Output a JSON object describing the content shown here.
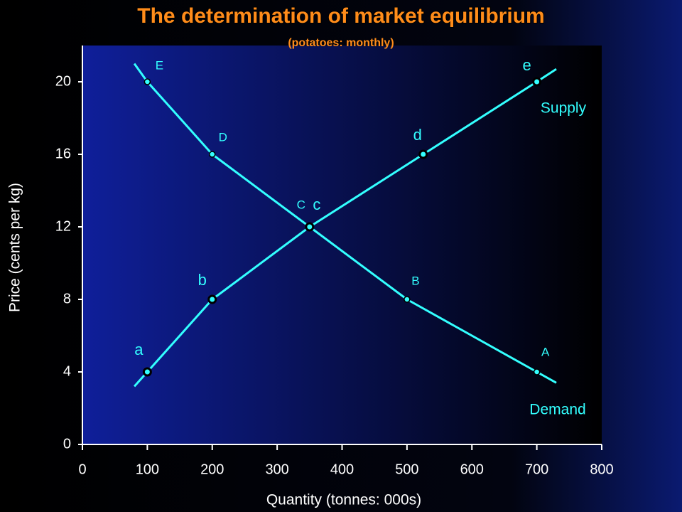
{
  "chart_data": {
    "type": "line",
    "title": "The determination of market equilibrium",
    "subtitle": "(potatoes: monthly)",
    "x_label": "Quantity (tonnes: 000s)",
    "y_label": "Price (cents per kg)",
    "xlim": [
      0,
      800
    ],
    "xticks": [
      0,
      100,
      200,
      300,
      400,
      500,
      600,
      700,
      800
    ],
    "ylim": [
      0,
      22
    ],
    "yticks": [
      0,
      4,
      8,
      12,
      16,
      20
    ],
    "grid": false,
    "series": [
      {
        "name": "Demand",
        "color": "#33ffff",
        "x": [
          80,
          100,
          200,
          350,
          500,
          700,
          730
        ],
        "values": [
          21,
          20,
          16,
          12,
          8,
          4,
          3.4
        ],
        "point_labels": [
          null,
          "E",
          "D",
          "C",
          "B",
          "A",
          null
        ]
      },
      {
        "name": "Supply",
        "color": "#33ffff",
        "x": [
          80,
          100,
          200,
          350,
          525,
          700,
          730
        ],
        "values": [
          3.2,
          4,
          8,
          12,
          16,
          20,
          20.7
        ],
        "point_labels": [
          null,
          "a",
          "b",
          "c",
          "d",
          "e",
          null
        ]
      }
    ]
  }
}
